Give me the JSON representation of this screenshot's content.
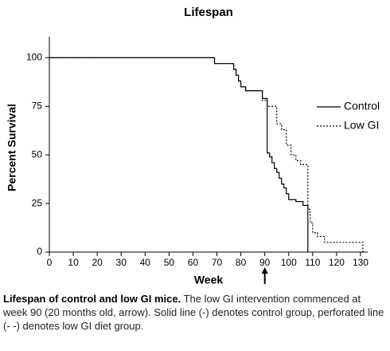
{
  "chart_data": {
    "type": "step",
    "title": "Lifespan",
    "x_label": "Week",
    "y_label": "Percent Survival",
    "xlim": [
      0,
      133
    ],
    "ylim": [
      0,
      110
    ],
    "xticks": [
      0,
      10,
      20,
      30,
      40,
      50,
      60,
      70,
      80,
      90,
      100,
      110,
      120,
      130
    ],
    "yticks": [
      0,
      25,
      50,
      75,
      100
    ],
    "legend": "right",
    "arrow_x": 90,
    "series": [
      {
        "name": "Control",
        "color": "#000000",
        "dash": "solid",
        "x": [
          0,
          69,
          77,
          78,
          79,
          80,
          82,
          89,
          91,
          92,
          93,
          94,
          95,
          96,
          97,
          98,
          99,
          100,
          103,
          106,
          108
        ],
        "values": [
          100,
          97,
          94,
          91,
          88,
          85,
          83,
          79,
          51,
          49,
          46,
          43,
          41,
          38,
          35,
          33,
          30,
          27,
          26,
          24,
          0
        ]
      },
      {
        "name": "Low GI",
        "color": "#000000",
        "dash": "dotted",
        "x": [
          0,
          69,
          77,
          78,
          79,
          80,
          82,
          89,
          91,
          95,
          97,
          99,
          101,
          103,
          105,
          108,
          109,
          110,
          112,
          115,
          131
        ],
        "values": [
          100,
          97,
          94,
          91,
          88,
          85,
          83,
          78,
          75,
          66,
          63,
          55,
          50,
          47,
          45,
          22,
          15,
          10,
          8,
          5,
          0
        ]
      }
    ]
  },
  "caption": {
    "title": "Lifespan of control and low GI mice.",
    "text": "The low GI intervention commenced at week 90 (20 months old, arrow). Solid line (-) denotes control group, perforated line (- -) denotes low GI diet group."
  }
}
